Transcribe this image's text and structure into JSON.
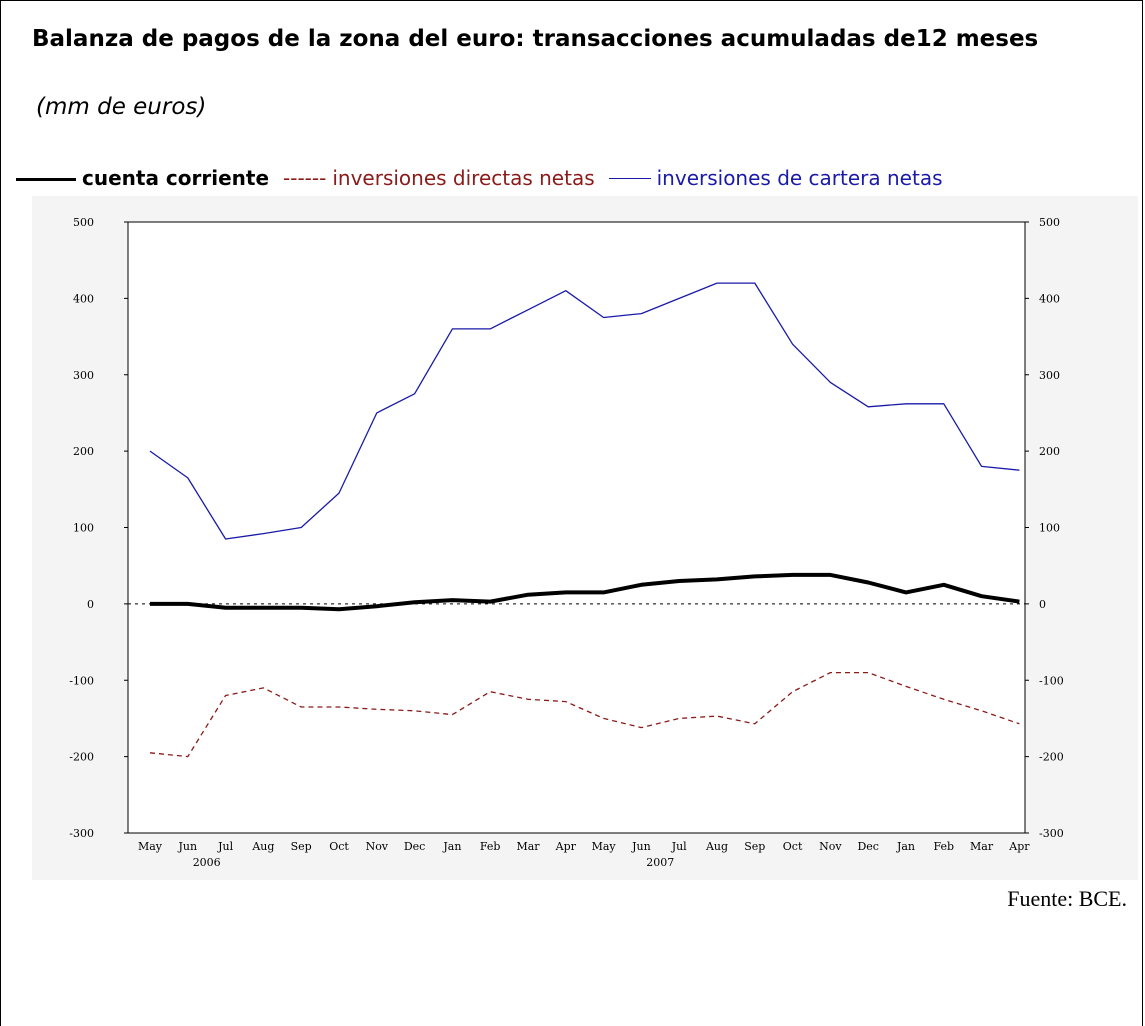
{
  "title": "Balanza de pagos de la zona del euro: transacciones acumuladas de12 meses",
  "subtitle": "(mm de euros)",
  "legend": {
    "current_account": "cuenta corriente",
    "direct_dash": "------",
    "direct_investment": "inversiones directas netas",
    "portfolio_investment": "inversiones de cartera netas"
  },
  "source": "Fuente: BCE.",
  "colors": {
    "current_account": "#000000",
    "direct_investment": "#8b1a1a",
    "portfolio_investment": "#1a1aa8"
  },
  "chart_data": {
    "type": "line",
    "title": "Balanza de pagos de la zona del euro: transacciones acumuladas de12 meses",
    "ylabel": "",
    "xlabel": "",
    "ylim": [
      -300,
      500
    ],
    "yticks": [
      -300,
      -200,
      -100,
      0,
      100,
      200,
      300,
      400,
      500
    ],
    "categories": [
      "May",
      "Jun",
      "Jul",
      "Aug",
      "Sep",
      "Oct",
      "Nov",
      "Dec",
      "Jan",
      "Feb",
      "Mar",
      "Apr",
      "May",
      "Jun",
      "Jul",
      "Aug",
      "Sep",
      "Oct",
      "Nov",
      "Dec",
      "Jan",
      "Feb",
      "Mar",
      "Apr"
    ],
    "year_labels": [
      {
        "index": 1.5,
        "label": "2006"
      },
      {
        "index": 13.5,
        "label": "2007"
      }
    ],
    "zero_line": "dotted",
    "series": [
      {
        "name": "cuenta corriente",
        "style": "solid-thick",
        "values": [
          0,
          0,
          -5,
          -5,
          -5,
          -7,
          -3,
          2,
          5,
          3,
          12,
          15,
          15,
          25,
          30,
          32,
          36,
          38,
          38,
          28,
          15,
          25,
          10,
          3
        ]
      },
      {
        "name": "inversiones directas netas",
        "style": "dashed",
        "values": [
          -195,
          -200,
          -120,
          -110,
          -135,
          -135,
          -138,
          -140,
          -145,
          -115,
          -125,
          -128,
          -150,
          -162,
          -150,
          -147,
          -157,
          -115,
          -90,
          -90,
          -108,
          -125,
          -140,
          -157
        ]
      },
      {
        "name": "inversiones de cartera netas",
        "style": "solid-thin",
        "values": [
          200,
          165,
          85,
          92,
          100,
          145,
          250,
          275,
          360,
          360,
          385,
          410,
          375,
          380,
          400,
          420,
          420,
          340,
          290,
          258,
          262,
          262,
          180,
          175
        ]
      }
    ]
  }
}
